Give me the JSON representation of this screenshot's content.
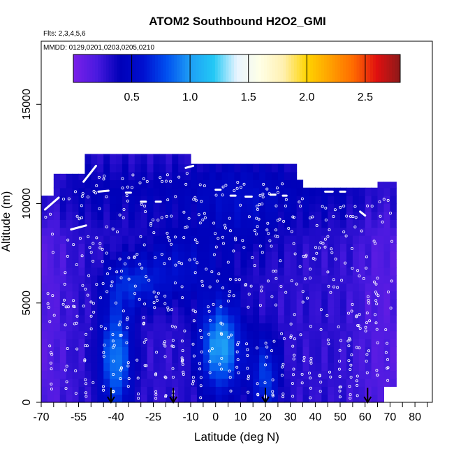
{
  "chart_data": {
    "type": "heatmap",
    "title": "ATOM2 Southbound H2O2_GMI",
    "flights_label": "Flts: 2,3,4,5,6",
    "dates_label": "MMDD: 0129,0201,0203,0205,0210",
    "xlabel": "Latitude (deg N)",
    "ylabel": "Altitude (m)",
    "xlim": [
      -70,
      85
    ],
    "ylim": [
      0,
      17500
    ],
    "x_tick_labels": [
      "-70",
      "-55",
      "-40",
      "-25",
      "-10",
      "0",
      "10",
      "20",
      "30",
      "40",
      "50",
      "60",
      "70",
      "80"
    ],
    "x_tick_values": [
      -70,
      -55,
      -40,
      -25,
      -10,
      0,
      10,
      20,
      30,
      40,
      50,
      60,
      70,
      80
    ],
    "x_minor_ticks": [
      -65,
      -60,
      -50,
      -45,
      -35,
      -30,
      -20,
      -15,
      -5,
      5,
      15,
      25,
      35,
      45,
      55,
      65,
      75,
      85
    ],
    "y_tick_labels": [
      "0",
      "5000",
      "10000",
      "15000"
    ],
    "y_tick_values": [
      0,
      5000,
      10000,
      15000
    ],
    "colorbar": {
      "min": 0.0,
      "max": 2.8,
      "tick_labels": [
        "0.5",
        "1.0",
        "1.5",
        "2.0",
        "2.5"
      ],
      "tick_values": [
        0.5,
        1.0,
        1.5,
        2.0,
        2.5
      ],
      "colors": [
        "#7a1fe8",
        "#4a1ae0",
        "#0000b8",
        "#0010d0",
        "#0050f0",
        "#1e9ef5",
        "#22c8f5",
        "#e8f4ff",
        "#ffffe6",
        "#fff0b0",
        "#ffd400",
        "#ffa000",
        "#ff6a00",
        "#e01010",
        "#8b1a1a"
      ]
    },
    "field": {
      "lat_range": [
        -70,
        71
      ],
      "alt_range": [
        0,
        12500
      ],
      "description_levels": "low values ~0.1-0.9; highest ~1.0 near surface at -40 and 0 to 5 deg N"
    },
    "arrows_lat": [
      -42,
      -17,
      20,
      61
    ],
    "grid": false
  }
}
